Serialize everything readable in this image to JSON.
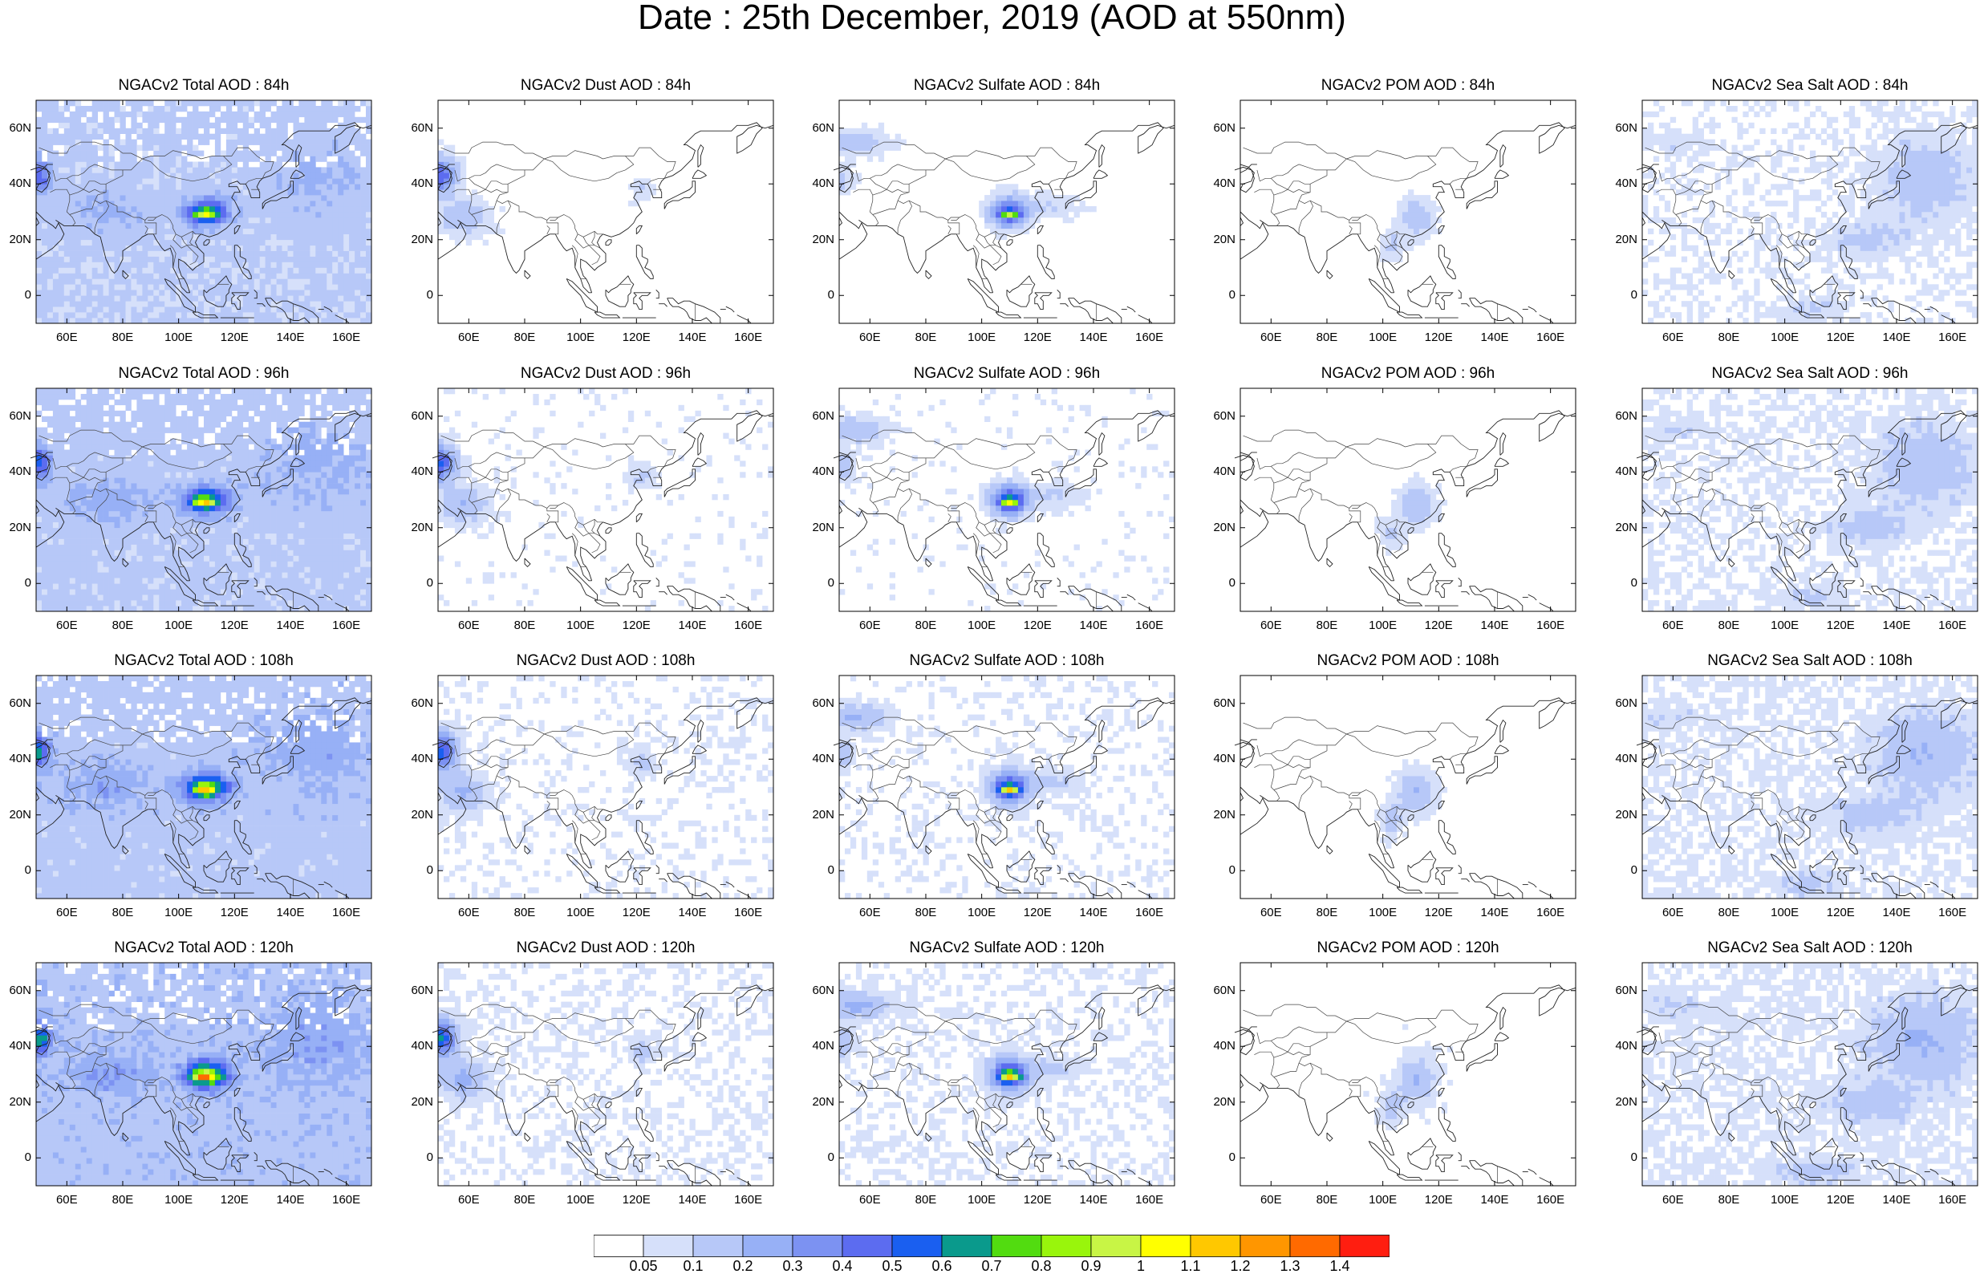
{
  "title": "Date : 25th December, 2019 (AOD at 550nm)",
  "axes": {
    "lon_ticks": [
      {
        "value": 60,
        "label": "60E"
      },
      {
        "value": 80,
        "label": "80E"
      },
      {
        "value": 100,
        "label": "100E"
      },
      {
        "value": 120,
        "label": "120E"
      },
      {
        "value": 140,
        "label": "140E"
      },
      {
        "value": 160,
        "label": "160E"
      }
    ],
    "lat_ticks": [
      {
        "value": 60,
        "label": "60N"
      },
      {
        "value": 40,
        "label": "40N"
      },
      {
        "value": 20,
        "label": "20N"
      },
      {
        "value": 0,
        "label": "0"
      }
    ],
    "lon_range": [
      49,
      169
    ],
    "lat_range": [
      -10,
      70
    ]
  },
  "panels": [
    {
      "title": "NGACv2 Total AOD : 84h",
      "species": "total"
    },
    {
      "title": "NGACv2 Dust AOD : 84h",
      "species": "dust"
    },
    {
      "title": "NGACv2 Sulfate AOD : 84h",
      "species": "sulfate"
    },
    {
      "title": "NGACv2 POM AOD : 84h",
      "species": "pom"
    },
    {
      "title": "NGACv2 Sea Salt AOD : 84h",
      "species": "seasalt"
    },
    {
      "title": "NGACv2 Total AOD : 96h",
      "species": "total"
    },
    {
      "title": "NGACv2 Dust AOD : 96h",
      "species": "dust"
    },
    {
      "title": "NGACv2 Sulfate AOD : 96h",
      "species": "sulfate"
    },
    {
      "title": "NGACv2 POM AOD : 96h",
      "species": "pom"
    },
    {
      "title": "NGACv2 Sea Salt AOD : 96h",
      "species": "seasalt"
    },
    {
      "title": "NGACv2 Total AOD : 108h",
      "species": "total"
    },
    {
      "title": "NGACv2 Dust AOD : 108h",
      "species": "dust"
    },
    {
      "title": "NGACv2 Sulfate AOD : 108h",
      "species": "sulfate"
    },
    {
      "title": "NGACv2 POM AOD : 108h",
      "species": "pom"
    },
    {
      "title": "NGACv2 Sea Salt AOD : 108h",
      "species": "seasalt"
    },
    {
      "title": "NGACv2 Total AOD : 120h",
      "species": "total"
    },
    {
      "title": "NGACv2 Dust AOD : 120h",
      "species": "dust"
    },
    {
      "title": "NGACv2 Sulfate AOD : 120h",
      "species": "sulfate"
    },
    {
      "title": "NGACv2 POM AOD : 120h",
      "species": "pom"
    },
    {
      "title": "NGACv2 Sea Salt  AOD : 120h",
      "species": "seasalt"
    }
  ],
  "colorbar": {
    "levels": [
      "0.05",
      "0.1",
      "0.2",
      "0.3",
      "0.4",
      "0.5",
      "0.6",
      "0.7",
      "0.8",
      "0.9",
      "1",
      "1.1",
      "1.2",
      "1.3",
      "1.4"
    ],
    "colors": [
      "#ffffff",
      "#d6e0fa",
      "#b7c8f8",
      "#97b0f6",
      "#7c92f2",
      "#5c6cf0",
      "#1a5ff0",
      "#0a9a8c",
      "#52dc10",
      "#99f50c",
      "#c8f545",
      "#ffff00",
      "#ffc800",
      "#ff9600",
      "#ff6a00",
      "#ff1e10"
    ]
  }
}
